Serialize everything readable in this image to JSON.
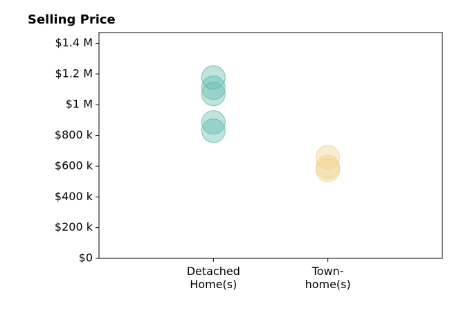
{
  "chart_data": {
    "type": "strip",
    "title": "Selling Price",
    "categories": [
      "Detached\nHome(s)",
      "Town-\nhome(s)"
    ],
    "colors": [
      "#5fb8ac",
      "#f0d28a"
    ],
    "values": [
      [
        1178000,
        1111000,
        1070000,
        885000,
        831000
      ],
      [
        659000,
        595000,
        575000
      ]
    ],
    "ylim": [
      0,
      1470000
    ],
    "yticks": [
      {
        "value": 0,
        "label": "$0"
      },
      {
        "value": 200000,
        "label": "$200 k"
      },
      {
        "value": 400000,
        "label": "$400 k"
      },
      {
        "value": 600000,
        "label": "$600 k"
      },
      {
        "value": 800000,
        "label": "$800 k"
      },
      {
        "value": 1000000,
        "label": "$1 M"
      },
      {
        "value": 1200000,
        "label": "$1.2 M"
      },
      {
        "value": 1400000,
        "label": "$1.4 M"
      }
    ]
  }
}
